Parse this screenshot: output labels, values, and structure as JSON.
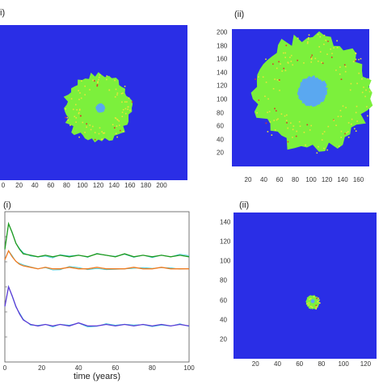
{
  "panels": {
    "top_left": {
      "label": "i)"
    },
    "top_right": {
      "label": "(ii)"
    },
    "bottom_left": {
      "label": "(i)"
    },
    "bottom_right": {
      "label": "(ii)"
    }
  },
  "colors": {
    "background_blue": "#2a2ee6",
    "green": "#7cf03c",
    "light_blue": "#5aa8f0",
    "yellow": "#e8e43a",
    "red": "#d93a2a",
    "series_green": "#1e9a1e",
    "series_orange": "#f07a1e",
    "series_purple": "#5a3ad6",
    "series_cyan": "#38c8d8"
  },
  "chart_data": [
    {
      "type": "heatmap",
      "panel": "top_left",
      "x_ticks": [
        "0",
        "20",
        "40",
        "60",
        "80",
        "100",
        "120",
        "140",
        "160",
        "180",
        "200"
      ],
      "xlim": [
        0,
        200
      ],
      "ylim": [
        0,
        200
      ],
      "grid": false,
      "regions": [
        {
          "name": "colonised area",
          "color": "green",
          "center": [
            105,
            93
          ],
          "radius": 43
        },
        {
          "name": "core",
          "color": "light_blue",
          "center": [
            107,
            93
          ],
          "radius": 6
        }
      ]
    },
    {
      "type": "heatmap",
      "panel": "top_right",
      "x_ticks": [
        "20",
        "40",
        "60",
        "80",
        "100",
        "120",
        "140",
        "160"
      ],
      "y_ticks": [
        "20",
        "40",
        "60",
        "80",
        "100",
        "120",
        "140",
        "160",
        "180",
        "200"
      ],
      "xlim": [
        0,
        170
      ],
      "ylim": [
        0,
        205
      ],
      "grid": false,
      "regions": [
        {
          "name": "colonised area",
          "color": "green",
          "center": [
            100,
            110
          ],
          "radius": 85
        },
        {
          "name": "core",
          "color": "light_blue",
          "center": [
            100,
            112
          ],
          "radius": 22
        }
      ]
    },
    {
      "type": "line",
      "panel": "bottom_left",
      "xlabel": "time (years)",
      "x_ticks": [
        "0",
        "20",
        "40",
        "60",
        "80",
        "100"
      ],
      "xlim": [
        0,
        100
      ],
      "ylim": [
        0,
        1
      ],
      "grid": false,
      "x": [
        0,
        2,
        4,
        6,
        8,
        10,
        14,
        18,
        22,
        26,
        30,
        35,
        40,
        45,
        50,
        55,
        60,
        65,
        70,
        75,
        80,
        85,
        90,
        95,
        100
      ],
      "series": [
        {
          "color": "series_green",
          "values": [
            0.75,
            0.92,
            0.86,
            0.79,
            0.75,
            0.72,
            0.71,
            0.7,
            0.71,
            0.7,
            0.71,
            0.7,
            0.71,
            0.7,
            0.72,
            0.71,
            0.7,
            0.72,
            0.7,
            0.71,
            0.7,
            0.71,
            0.7,
            0.71,
            0.7
          ]
        },
        {
          "color": "series_orange",
          "values": [
            0.68,
            0.74,
            0.7,
            0.67,
            0.65,
            0.64,
            0.63,
            0.62,
            0.63,
            0.62,
            0.62,
            0.63,
            0.62,
            0.62,
            0.63,
            0.62,
            0.62,
            0.62,
            0.63,
            0.62,
            0.62,
            0.63,
            0.62,
            0.62,
            0.62
          ]
        },
        {
          "color": "series_purple",
          "values": [
            0.37,
            0.5,
            0.44,
            0.37,
            0.32,
            0.28,
            0.25,
            0.24,
            0.25,
            0.24,
            0.25,
            0.24,
            0.26,
            0.24,
            0.24,
            0.25,
            0.24,
            0.25,
            0.24,
            0.25,
            0.24,
            0.25,
            0.24,
            0.25,
            0.24
          ]
        }
      ]
    },
    {
      "type": "heatmap",
      "panel": "bottom_right",
      "x_ticks": [
        "20",
        "40",
        "60",
        "80",
        "100",
        "120"
      ],
      "y_ticks": [
        "20",
        "40",
        "60",
        "80",
        "100",
        "120",
        "140"
      ],
      "xlim": [
        0,
        130
      ],
      "ylim": [
        0,
        150
      ],
      "grid": false,
      "regions": [
        {
          "name": "colonised area",
          "color": "green",
          "center": [
            72,
            58
          ],
          "radius": 7
        },
        {
          "name": "core",
          "color": "light_blue",
          "center": [
            72,
            59
          ],
          "radius": 2
        }
      ]
    }
  ]
}
